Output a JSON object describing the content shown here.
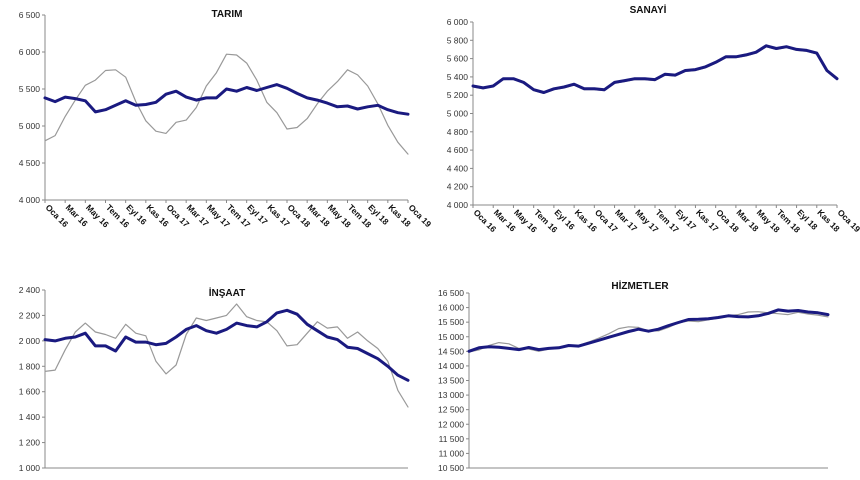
{
  "chart_data": [
    {
      "type": "line",
      "title": "TARIM",
      "ylim": [
        4000,
        6500
      ],
      "yticks": [
        "4 000",
        "4 500",
        "5 000",
        "5 500",
        "6 000",
        "6 500"
      ],
      "xtick_labels": [
        "Oca 16",
        "Mar 16",
        "May 16",
        "Tem 16",
        "Eyl 16",
        "Kas 16",
        "Oca 17",
        "Mar 17",
        "May 17",
        "Tem 17",
        "Eyl 17",
        "Kas 17",
        "Oca 18",
        "Mar 18",
        "May 18",
        "Tem 18",
        "Eyl 18",
        "Kas 18",
        "Oca 19"
      ],
      "x_count": 37,
      "series": [
        {
          "color": "#1a1a80",
          "values": [
            5380,
            5330,
            5390,
            5370,
            5340,
            5190,
            5220,
            5280,
            5340,
            5280,
            5290,
            5320,
            5430,
            5470,
            5390,
            5350,
            5380,
            5380,
            5500,
            5470,
            5520,
            5480,
            5520,
            5560,
            5510,
            5440,
            5380,
            5350,
            5310,
            5260,
            5270,
            5230,
            5260,
            5280,
            5220,
            5180,
            5160
          ]
        },
        {
          "color": "#999999",
          "values": [
            4800,
            4870,
            5130,
            5350,
            5550,
            5620,
            5750,
            5760,
            5660,
            5330,
            5070,
            4930,
            4900,
            5050,
            5080,
            5250,
            5540,
            5720,
            5970,
            5960,
            5850,
            5620,
            5320,
            5180,
            4960,
            4980,
            5100,
            5300,
            5470,
            5600,
            5760,
            5690,
            5540,
            5300,
            5010,
            4780,
            4620
          ]
        }
      ]
    },
    {
      "type": "line",
      "title": "SANAYİ",
      "ylim": [
        4000,
        6000
      ],
      "yticks": [
        "4 000",
        "4 200",
        "4 400",
        "4 600",
        "4 800",
        "5 000",
        "5 200",
        "5 400",
        "5 600",
        "5 800",
        "6 000"
      ],
      "xtick_labels": [
        "Oca 16",
        "Mar 16",
        "May 16",
        "Tem 16",
        "Eyl 16",
        "Kas 16",
        "Oca 17",
        "Mar 17",
        "May 17",
        "Tem 17",
        "Eyl 17",
        "Kas 17",
        "Oca 18",
        "Mar 18",
        "May 18",
        "Tem 18",
        "Eyl 18",
        "Kas 18",
        "Oca 19"
      ],
      "x_count": 37,
      "series": [
        {
          "color": "#1a1a80",
          "values": [
            5300,
            5280,
            5300,
            5380,
            5380,
            5340,
            5260,
            5230,
            5270,
            5290,
            5320,
            5270,
            5270,
            5260,
            5340,
            5360,
            5380,
            5380,
            5370,
            5430,
            5420,
            5470,
            5480,
            5510,
            5560,
            5620,
            5620,
            5640,
            5670,
            5740,
            5710,
            5730,
            5700,
            5690,
            5660,
            5470,
            5380
          ]
        },
        {
          "color": "#999999",
          "values": [
            5290,
            5270,
            5300,
            5370,
            5380,
            5330,
            5250,
            5220,
            5260,
            5280,
            5310,
            5260,
            5260,
            5250,
            5330,
            5350,
            5370,
            5370,
            5360,
            5420,
            5410,
            5460,
            5470,
            5500,
            5550,
            5610,
            5610,
            5630,
            5660,
            5730,
            5700,
            5720,
            5690,
            5680,
            5650,
            5460,
            5370
          ]
        }
      ]
    },
    {
      "type": "line",
      "title": "İNŞAAT",
      "ylim": [
        1000,
        2400
      ],
      "yticks": [
        "1 000",
        "1 200",
        "1 400",
        "1 600",
        "1 800",
        "2 000",
        "2 200",
        "2 400"
      ],
      "x_count": 37,
      "series": [
        {
          "color": "#1a1a80",
          "values": [
            2010,
            2000,
            2020,
            2030,
            2060,
            1960,
            1960,
            1920,
            2030,
            1990,
            1990,
            1970,
            1980,
            2030,
            2090,
            2120,
            2080,
            2060,
            2090,
            2140,
            2120,
            2110,
            2150,
            2220,
            2240,
            2210,
            2130,
            2080,
            2030,
            2010,
            1950,
            1940,
            1900,
            1860,
            1800,
            1730,
            1690
          ]
        },
        {
          "color": "#999999",
          "values": [
            1760,
            1770,
            1930,
            2070,
            2140,
            2070,
            2050,
            2020,
            2130,
            2060,
            2040,
            1840,
            1740,
            1810,
            2050,
            2180,
            2160,
            2180,
            2200,
            2290,
            2190,
            2160,
            2150,
            2080,
            1960,
            1970,
            2060,
            2150,
            2100,
            2110,
            2020,
            2070,
            2000,
            1940,
            1840,
            1610,
            1480
          ]
        }
      ]
    },
    {
      "type": "line",
      "title": "HİZMETLER",
      "ylim": [
        10500,
        16500
      ],
      "yticks": [
        "10 500",
        "11 000",
        "11 500",
        "12 000",
        "12 500",
        "13 000",
        "13 500",
        "14 000",
        "14 500",
        "15 000",
        "15 500",
        "16 000",
        "16 500"
      ],
      "x_count": 37,
      "series": [
        {
          "color": "#1a1a80",
          "values": [
            14500,
            14620,
            14660,
            14640,
            14600,
            14560,
            14630,
            14560,
            14600,
            14620,
            14700,
            14680,
            14780,
            14880,
            14980,
            15080,
            15180,
            15260,
            15190,
            15260,
            15380,
            15490,
            15590,
            15600,
            15620,
            15660,
            15720,
            15690,
            15680,
            15720,
            15800,
            15920,
            15880,
            15900,
            15850,
            15820,
            15760
          ]
        },
        {
          "color": "#999999",
          "values": [
            14480,
            14550,
            14700,
            14800,
            14760,
            14600,
            14580,
            14500,
            14580,
            14600,
            14680,
            14700,
            14820,
            14950,
            15100,
            15280,
            15340,
            15320,
            15200,
            15200,
            15320,
            15480,
            15540,
            15520,
            15580,
            15640,
            15720,
            15760,
            15850,
            15860,
            15820,
            15790,
            15760,
            15840,
            15780,
            15740,
            15680
          ]
        }
      ]
    }
  ]
}
